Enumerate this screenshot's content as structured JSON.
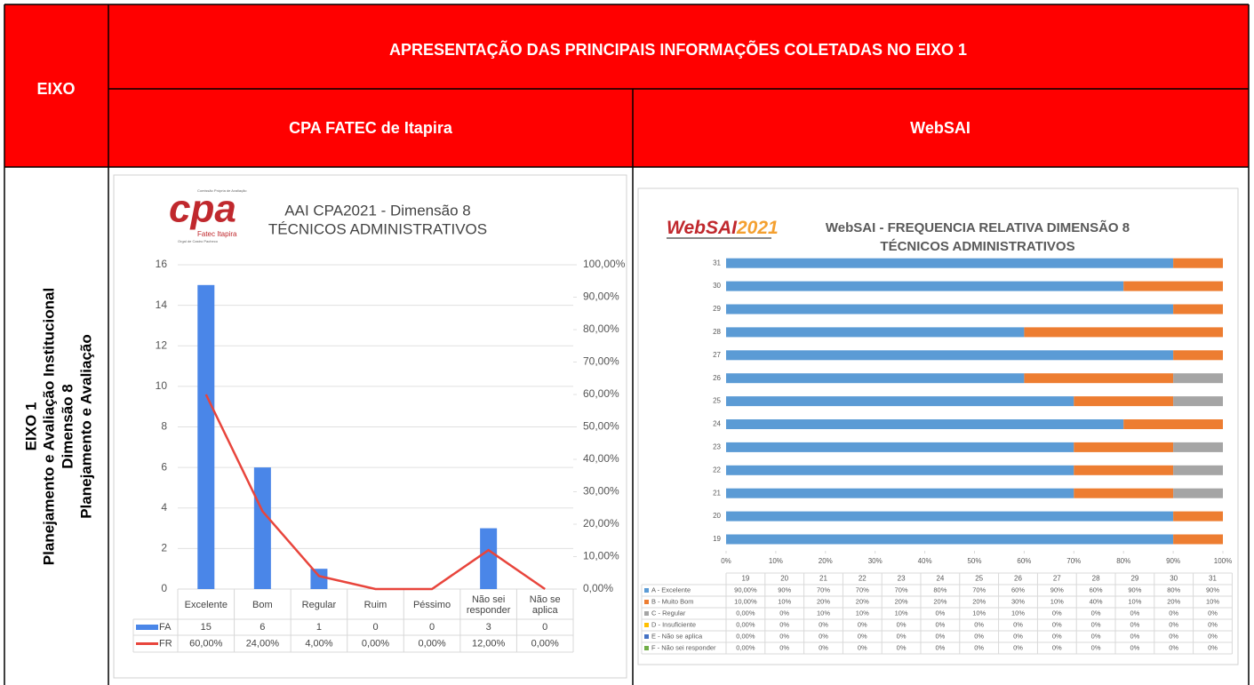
{
  "table": {
    "eixo_header": "EIXO",
    "title": "APRESENTAÇÃO DAS PRINCIPAIS INFORMAÇÕES COLETADAS NO EIXO 1",
    "columns": [
      "CPA FATEC de Itapira",
      "WebSAI"
    ],
    "row_label": [
      "EIXO 1",
      "Planejamento e Avaliação Institucional",
      "Dimensão 8",
      "Planejamento e Avaliação"
    ]
  },
  "chart_data": [
    {
      "type": "bar",
      "logo": {
        "text": "cpa",
        "caption": "Fatec Itapira",
        "small": [
          "Comissão Própria de Avaliação",
          "Orgal de Castro Pacheco"
        ]
      },
      "title": "AAI CPA2021 - Dimensão 8",
      "subtitle": "TÉCNICOS ADMINISTRATIVOS",
      "categories": [
        "Excelente",
        "Bom",
        "Regular",
        "Ruim",
        "Péssimo",
        "Não sei responder",
        "Não se aplica"
      ],
      "series": [
        {
          "name": "FA",
          "type": "bar",
          "color": "#4a86e8",
          "values": [
            15,
            6,
            1,
            0,
            0,
            3,
            0
          ]
        },
        {
          "name": "FR",
          "type": "line",
          "axis": "y2",
          "color": "#e8453c",
          "values": [
            60,
            24,
            4,
            0,
            0,
            12,
            0
          ],
          "value_labels": [
            "60,00%",
            "24,00%",
            "4,00%",
            "0,00%",
            "0,00%",
            "12,00%",
            "0,00%"
          ]
        }
      ],
      "ylim": [
        0,
        16
      ],
      "yticks": [
        0,
        2,
        4,
        6,
        8,
        10,
        12,
        14,
        16
      ],
      "y2lim": [
        0,
        100
      ],
      "y2ticks": [
        {
          "value": 0,
          "label": "0,00%"
        },
        {
          "value": 10,
          "label": "10,00%"
        },
        {
          "value": 20,
          "label": "20,00%"
        },
        {
          "value": 30,
          "label": "30,00%"
        },
        {
          "value": 40,
          "label": "40,00%"
        },
        {
          "value": 50,
          "label": "50,00%"
        },
        {
          "value": 60,
          "label": "60,00%"
        },
        {
          "value": 70,
          "label": "70,00%"
        },
        {
          "value": 80,
          "label": "80,00%"
        },
        {
          "value": 90,
          "label": "90,00%"
        },
        {
          "value": 100,
          "label": "100,00%"
        }
      ],
      "grid": true
    },
    {
      "type": "stacked_barh",
      "logo": {
        "text": "WebSAI",
        "year": "2021"
      },
      "title": "WebSAI - FREQUENCIA RELATIVA DIMENSÃO 8",
      "subtitle": "TÉCNICOS ADMINISTRATIVOS",
      "categories": [
        "19",
        "20",
        "21",
        "22",
        "23",
        "24",
        "25",
        "26",
        "27",
        "28",
        "29",
        "30",
        "31"
      ],
      "series": [
        {
          "name": "A - Excelente",
          "color": "#5b9bd5",
          "values": [
            90,
            90,
            70,
            70,
            70,
            80,
            70,
            60,
            90,
            60,
            90,
            80,
            90
          ],
          "value_labels": [
            "90,00%",
            "90%",
            "70%",
            "70%",
            "70%",
            "80%",
            "70%",
            "60%",
            "90%",
            "60%",
            "90%",
            "80%",
            "90%"
          ]
        },
        {
          "name": "B - Muito Bom",
          "color": "#ed7d31",
          "values": [
            10,
            10,
            20,
            20,
            20,
            20,
            20,
            30,
            10,
            40,
            10,
            20,
            10
          ],
          "value_labels": [
            "10,00%",
            "10%",
            "20%",
            "20%",
            "20%",
            "20%",
            "20%",
            "30%",
            "10%",
            "40%",
            "10%",
            "20%",
            "10%"
          ]
        },
        {
          "name": "C - Regular",
          "color": "#a5a5a5",
          "values": [
            0,
            0,
            10,
            10,
            10,
            0,
            10,
            10,
            0,
            0,
            0,
            0,
            0
          ],
          "value_labels": [
            "0,00%",
            "0%",
            "10%",
            "10%",
            "10%",
            "0%",
            "10%",
            "10%",
            "0%",
            "0%",
            "0%",
            "0%",
            "0%"
          ]
        },
        {
          "name": "D - Insuficiente",
          "color": "#ffc000",
          "values": [
            0,
            0,
            0,
            0,
            0,
            0,
            0,
            0,
            0,
            0,
            0,
            0,
            0
          ],
          "value_labels": [
            "0,00%",
            "0%",
            "0%",
            "0%",
            "0%",
            "0%",
            "0%",
            "0%",
            "0%",
            "0%",
            "0%",
            "0%",
            "0%"
          ]
        },
        {
          "name": "E - Não se aplica",
          "color": "#4472c4",
          "values": [
            0,
            0,
            0,
            0,
            0,
            0,
            0,
            0,
            0,
            0,
            0,
            0,
            0
          ],
          "value_labels": [
            "0,00%",
            "0%",
            "0%",
            "0%",
            "0%",
            "0%",
            "0%",
            "0%",
            "0%",
            "0%",
            "0%",
            "0%",
            "0%"
          ]
        },
        {
          "name": "F - Não sei responder",
          "color": "#70ad47",
          "values": [
            0,
            0,
            0,
            0,
            0,
            0,
            0,
            0,
            0,
            0,
            0,
            0,
            0
          ],
          "value_labels": [
            "0,00%",
            "0%",
            "0%",
            "0%",
            "0%",
            "0%",
            "0%",
            "0%",
            "0%",
            "0%",
            "0%",
            "0%",
            "0%"
          ]
        }
      ],
      "xlim": [
        0,
        100
      ],
      "xticks": [
        {
          "value": 0,
          "label": "0%"
        },
        {
          "value": 10,
          "label": "10%"
        },
        {
          "value": 20,
          "label": "20%"
        },
        {
          "value": 30,
          "label": "30%"
        },
        {
          "value": 40,
          "label": "40%"
        },
        {
          "value": 50,
          "label": "50%"
        },
        {
          "value": 60,
          "label": "60%"
        },
        {
          "value": 70,
          "label": "70%"
        },
        {
          "value": 80,
          "label": "80%"
        },
        {
          "value": 90,
          "label": "90%"
        },
        {
          "value": 100,
          "label": "100%"
        }
      ],
      "grid": false
    }
  ]
}
